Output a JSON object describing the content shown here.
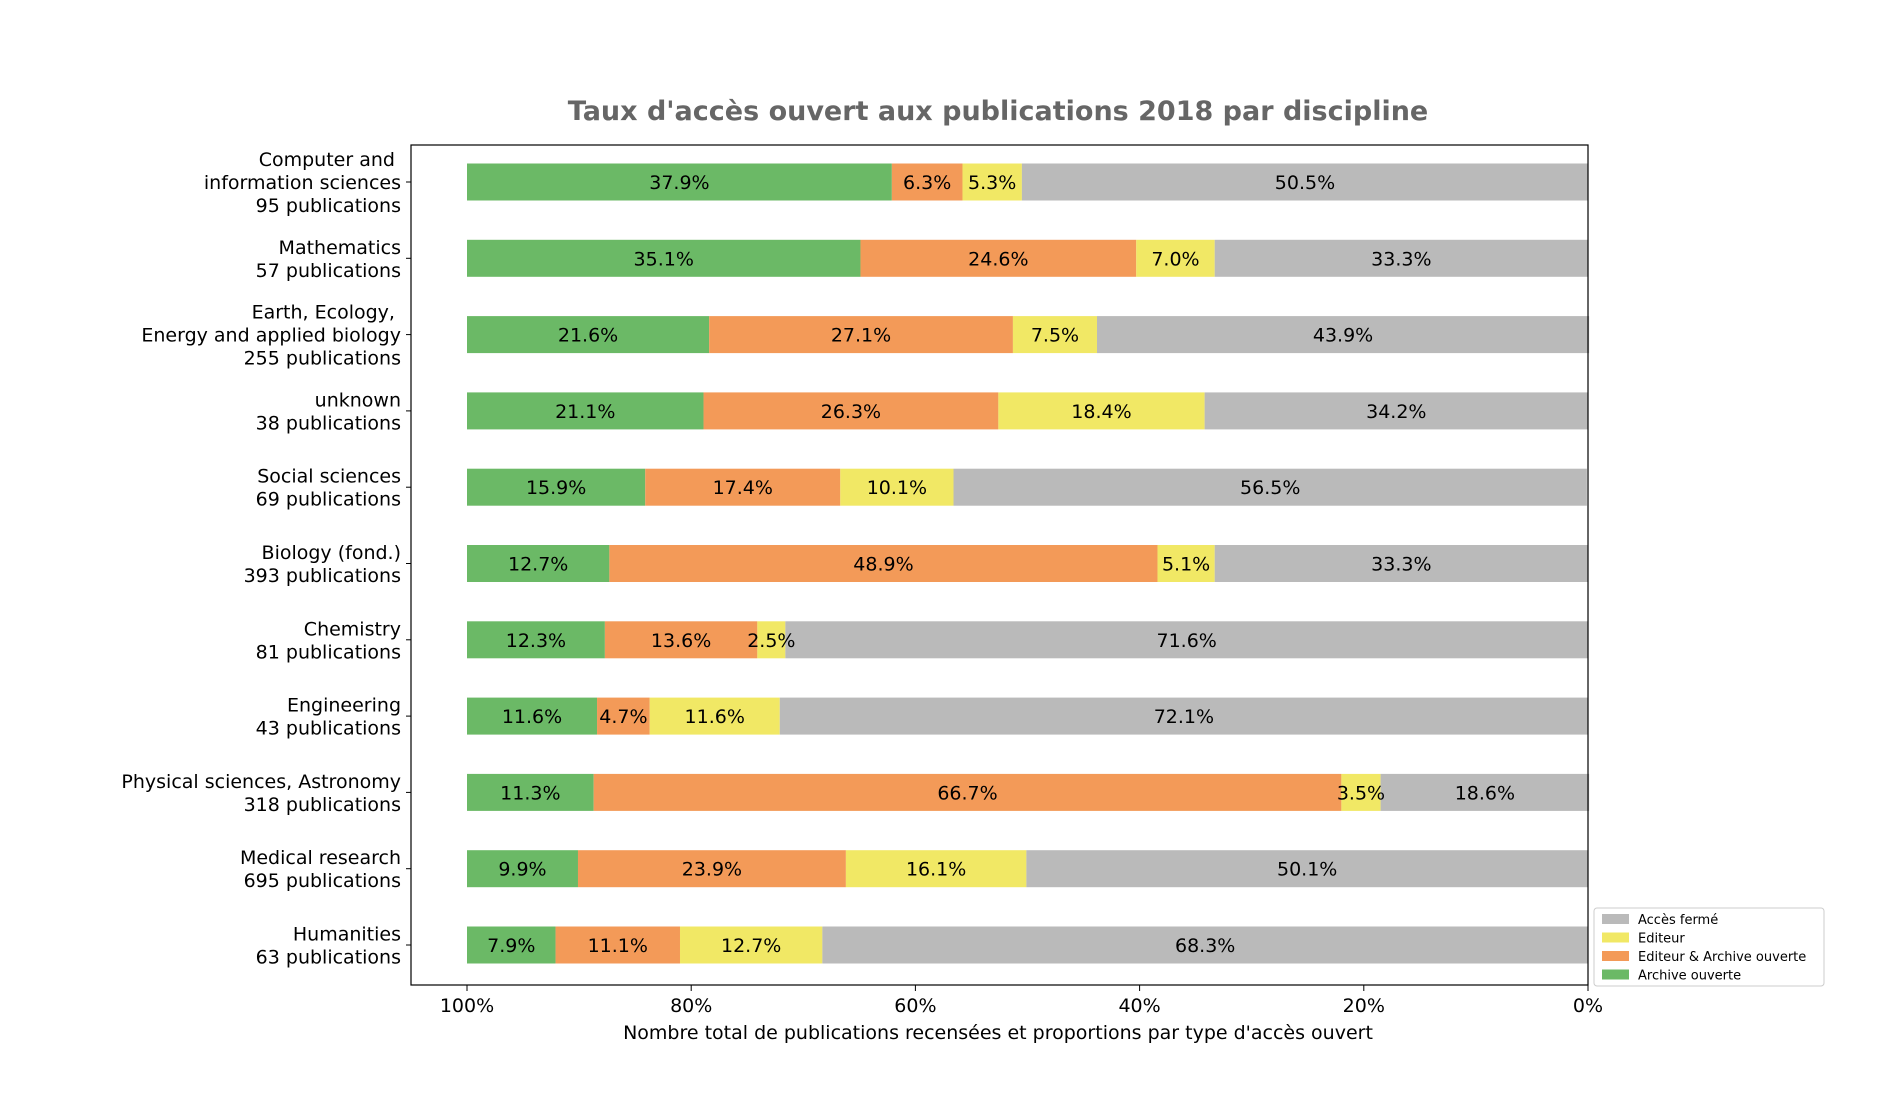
{
  "chart_data": {
    "type": "bar",
    "orientation": "horizontal-stacked",
    "title": "Taux d'accès ouvert aux publications 2018 par discipline",
    "title_color": "#666666",
    "xlabel": "Nombre total de publications recensées et proportions par type d'accès ouvert",
    "ylabel": "",
    "xlim": [
      100,
      0
    ],
    "x_ticks": [
      "100%",
      "80%",
      "60%",
      "40%",
      "20%",
      "0%"
    ],
    "grid": false,
    "legend_position": "lower-right",
    "categories": [
      [
        "Computer and ",
        "information sciences",
        "95 publications"
      ],
      [
        "Mathematics",
        "57 publications"
      ],
      [
        "Earth, Ecology, ",
        "Energy and applied biology",
        "255 publications"
      ],
      [
        "unknown",
        "38 publications"
      ],
      [
        "Social sciences",
        "69 publications"
      ],
      [
        "Biology (fond.)",
        "393 publications"
      ],
      [
        "Chemistry",
        "81 publications"
      ],
      [
        "Engineering",
        "43 publications"
      ],
      [
        "Physical sciences, Astronomy",
        "318 publications"
      ],
      [
        "Medical research",
        "695 publications"
      ],
      [
        "Humanities",
        "63 publications"
      ]
    ],
    "series": [
      {
        "name": "Archive ouverte",
        "color": "#6bb966",
        "values": [
          37.9,
          35.1,
          21.6,
          21.1,
          15.9,
          12.7,
          12.3,
          11.6,
          11.3,
          9.9,
          7.9
        ]
      },
      {
        "name": "Editeur & Archive ouverte",
        "color": "#f39a58",
        "values": [
          6.3,
          24.6,
          27.1,
          26.3,
          17.4,
          48.9,
          13.6,
          4.7,
          66.7,
          23.9,
          11.1
        ]
      },
      {
        "name": "Editeur",
        "color": "#f1e865",
        "values": [
          5.3,
          7.0,
          7.5,
          18.4,
          10.1,
          5.1,
          2.5,
          11.6,
          3.5,
          16.1,
          12.7
        ]
      },
      {
        "name": "Accès fermé",
        "color": "#bababa",
        "values": [
          50.5,
          33.3,
          43.9,
          34.2,
          56.5,
          33.3,
          71.6,
          72.1,
          18.6,
          50.1,
          68.3
        ]
      }
    ],
    "legend_order": [
      "Accès fermé",
      "Editeur",
      "Editeur & Archive ouverte",
      "Archive ouverte"
    ]
  }
}
